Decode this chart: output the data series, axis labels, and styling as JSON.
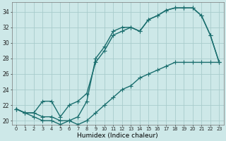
{
  "xlabel": "Humidex (Indice chaleur)",
  "bg_color": "#cde8e8",
  "grid_color": "#a8cccc",
  "line_color": "#1a6e6e",
  "xlim": [
    -0.5,
    23.5
  ],
  "ylim": [
    19.5,
    35.2
  ],
  "yticks": [
    20,
    22,
    24,
    26,
    28,
    30,
    32,
    34
  ],
  "xticks": [
    0,
    1,
    2,
    3,
    4,
    5,
    6,
    7,
    8,
    9,
    10,
    11,
    12,
    13,
    14,
    15,
    16,
    17,
    18,
    19,
    20,
    21,
    22,
    23
  ],
  "curve1_x": [
    0,
    1,
    2,
    3,
    4,
    5,
    6,
    7,
    8,
    9,
    10,
    11,
    12,
    13,
    14,
    15,
    16,
    17,
    18,
    19,
    20,
    21,
    22,
    23
  ],
  "curve1_y": [
    21.5,
    21.0,
    21.0,
    20.5,
    20.5,
    20.0,
    20.0,
    20.5,
    22.5,
    28.0,
    29.5,
    31.5,
    32.0,
    32.0,
    31.5,
    33.0,
    33.5,
    34.2,
    34.5,
    34.5,
    34.5,
    33.5,
    31.0,
    27.5
  ],
  "curve2_x": [
    0,
    1,
    2,
    3,
    4,
    5,
    6,
    7,
    8,
    9,
    10,
    11,
    12,
    13,
    14,
    15,
    16,
    17,
    18,
    19,
    20,
    21,
    22,
    23
  ],
  "curve2_y": [
    21.5,
    21.0,
    21.0,
    22.5,
    22.5,
    20.5,
    22.0,
    22.5,
    23.5,
    27.5,
    29.0,
    31.0,
    31.5,
    32.0,
    31.5,
    33.0,
    33.5,
    34.2,
    34.5,
    34.5,
    34.5,
    33.5,
    31.0,
    27.5
  ],
  "curve3_x": [
    0,
    1,
    2,
    3,
    4,
    5,
    6,
    7,
    8,
    9,
    10,
    11,
    12,
    13,
    14,
    15,
    16,
    17,
    18,
    19,
    20,
    21,
    22,
    23
  ],
  "curve3_y": [
    21.5,
    21.0,
    20.5,
    20.0,
    20.0,
    19.5,
    20.0,
    19.5,
    20.0,
    21.0,
    22.0,
    23.0,
    24.0,
    24.5,
    25.5,
    26.0,
    26.5,
    27.0,
    27.5,
    27.5,
    27.5,
    27.5,
    27.5,
    27.5
  ]
}
